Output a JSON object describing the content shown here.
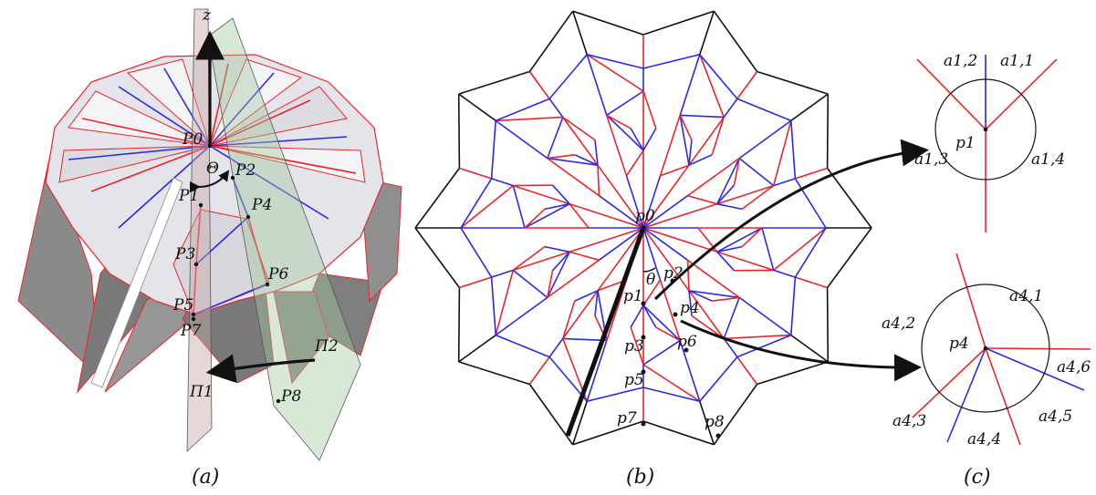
{
  "captions": {
    "a": "(a)",
    "b": "(b)",
    "c": "(c)"
  },
  "panel_a": {
    "z_axis": "z",
    "theta_cap": "Θ",
    "points": [
      "P0",
      "P1",
      "P2",
      "P3",
      "P4",
      "P5",
      "P6",
      "P7",
      "P8"
    ],
    "planes": [
      "Π1",
      "Π2"
    ]
  },
  "panel_b": {
    "points": [
      "p0",
      "p1",
      "p2",
      "p3",
      "p4",
      "p5",
      "p6",
      "p7",
      "p8"
    ],
    "theta": "θ"
  },
  "panel_c": {
    "vertex1": {
      "name": "p1",
      "angles": [
        "a1,1",
        "a1,2",
        "a1,3",
        "a1,4"
      ]
    },
    "vertex4": {
      "name": "p4",
      "angles": [
        "a4,1",
        "a4,2",
        "a4,3",
        "a4,4",
        "a4,5",
        "a4,6"
      ]
    }
  },
  "colors": {
    "mountain": "#e8262a",
    "valley": "#2a2ae6",
    "boundary": "#111111",
    "plane1": "#c9a9a9",
    "plane2": "#9fc79f"
  }
}
